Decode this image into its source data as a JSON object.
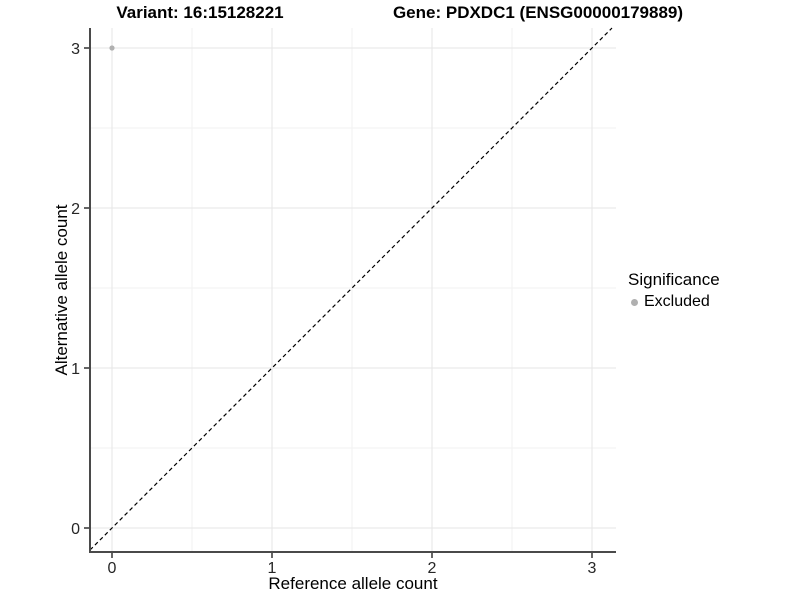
{
  "titles": {
    "variant": "Variant: 16:15128221",
    "gene": "Gene: PDXDC1 (ENSG00000179889)"
  },
  "axes": {
    "xlabel": "Reference allele count",
    "ylabel": "Alternative allele count"
  },
  "legend": {
    "title": "Significance",
    "items": [
      {
        "label": "Excluded",
        "color": "#b0b0b0"
      }
    ]
  },
  "chart_data": {
    "type": "scatter",
    "title": "Variant: 16:15128221    Gene: PDXDC1 (ENSG00000179889)",
    "xlabel": "Reference allele count",
    "ylabel": "Alternative allele count",
    "x_ticks": [
      0,
      1,
      2,
      3
    ],
    "y_ticks": [
      0,
      1,
      2,
      3
    ],
    "xlim": [
      -0.1375,
      3.15
    ],
    "ylim": [
      -0.15,
      3.125
    ],
    "grid": "major+minor",
    "legend_position": "right",
    "series": [
      {
        "name": "Excluded",
        "color": "#b0b0b0",
        "points": [
          {
            "x": 0,
            "y": 3
          }
        ]
      }
    ],
    "reference_line": {
      "type": "identity",
      "style": "dashed",
      "color": "#000000"
    }
  },
  "style_colors": {
    "grid_major": "#e6e6e6",
    "grid_minor": "#f2f2f2",
    "axis_line": "#4a4a4a",
    "tick_mark": "#333333",
    "tick_label": "#262626",
    "point": "#b0b0b0"
  }
}
